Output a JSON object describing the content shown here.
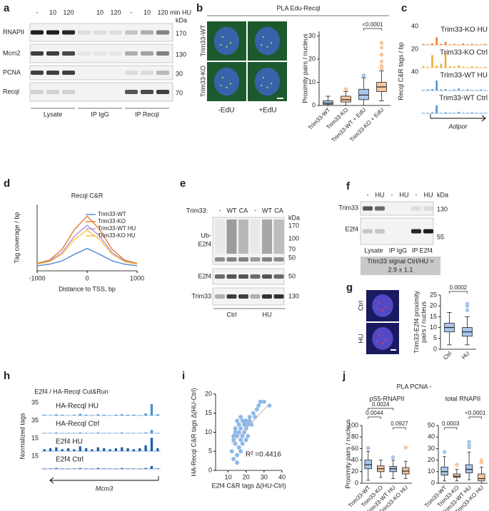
{
  "panel_labels": [
    "a",
    "b",
    "c",
    "d",
    "e",
    "f",
    "g",
    "h",
    "i",
    "j"
  ],
  "a": {
    "lanes": [
      "-",
      "10",
      "120",
      "10",
      "120",
      "-",
      "10",
      "120"
    ],
    "lane_unit": "min HU",
    "kda": "kDa",
    "rows": [
      {
        "name": "RNAPII",
        "kda": "170"
      },
      {
        "name": "Mcm2",
        "kda": "130"
      },
      {
        "name": "PCNA",
        "kda": "30"
      },
      {
        "name": "Recql",
        "kda": "70"
      }
    ],
    "groups": [
      "Lysate",
      "IP IgG",
      "IP Recql"
    ]
  },
  "b": {
    "title": "PLA Edu-Recql",
    "rows": [
      "Trim33-WT",
      "Trim33-KO"
    ],
    "columns": [
      "-EdU",
      "+EdU"
    ],
    "chart": {
      "type": "box",
      "ylabel": "Proximity pairs / nucleus",
      "categories": [
        "Trim33-WT",
        "Trim33-KO",
        "Trim33-WT + EdU",
        "Trim33-KO + EdU"
      ],
      "boxes": [
        [
          0,
          0.5,
          1,
          2,
          4
        ],
        [
          0,
          1.5,
          2.5,
          4,
          6
        ],
        [
          0,
          2.5,
          4.5,
          7,
          12
        ],
        [
          2,
          6,
          8,
          10,
          15
        ]
      ],
      "outliers": [
        [],
        [
          7
        ],
        [
          13
        ],
        [
          16,
          17,
          19,
          22,
          25,
          27
        ]
      ],
      "colors": [
        "#a9c7ec",
        "#f6c8a0",
        "#a9c7ec",
        "#f6c8a0"
      ],
      "ylim": [
        0,
        32
      ],
      "yticks": [
        0,
        10,
        20,
        30
      ],
      "pvalues": [
        "<0.0001"
      ]
    }
  },
  "c": {
    "chart": {
      "type": "tracks",
      "ylabel": "Recql C&R tags / bp",
      "ylim": [
        0,
        40
      ],
      "gene": "Adipor",
      "tracks": [
        {
          "name": "Trim33-KO HU",
          "color": "#e8752a",
          "scale": 40,
          "values": [
            2,
            1,
            3,
            15,
            2,
            6,
            1,
            2,
            1,
            3,
            1,
            2,
            1,
            1,
            2
          ]
        },
        {
          "name": "Trim33-KO Ctrl",
          "color": "#f0a830",
          "scale": 20,
          "values": [
            3,
            2,
            25,
            4,
            8,
            30,
            3,
            2,
            5,
            2,
            1,
            3,
            2,
            1,
            2
          ]
        },
        {
          "name": "Trim33-WT HU",
          "color": "#4a8fd0",
          "scale": 40,
          "values": [
            1,
            2,
            3,
            20,
            2,
            3,
            1,
            2,
            4,
            1,
            2,
            1,
            1,
            2,
            1
          ]
        },
        {
          "name": "Trim33-WT Ctrl",
          "color": "#4a8fd0",
          "values": [
            1,
            1,
            2,
            16,
            1,
            2,
            1,
            1,
            3,
            1,
            1,
            2,
            1,
            1,
            1
          ]
        }
      ]
    }
  },
  "d": {
    "chart": {
      "type": "line",
      "title": "Recql C&R",
      "xlabel": "Distance to TSS, bp",
      "ylabel": "Tag coverage / bp",
      "x": [
        -1000,
        -750,
        -500,
        -250,
        0,
        250,
        500,
        750,
        1000
      ],
      "series": [
        {
          "name": "Trim33-WT",
          "color": "#4a7fd4",
          "values": [
            0.6,
            0.8,
            1.2,
            2.0,
            2.7,
            2.0,
            1.2,
            0.8,
            0.6
          ]
        },
        {
          "name": "Trim33-KO",
          "color": "#e8752a",
          "values": [
            0.9,
            1.3,
            2.6,
            5.0,
            6.6,
            5.0,
            2.6,
            1.3,
            0.9
          ]
        },
        {
          "name": "Trim33-WT HU",
          "color": "#b08ad8",
          "values": [
            0.8,
            1.2,
            2.2,
            4.2,
            5.5,
            4.2,
            2.2,
            1.2,
            0.8
          ]
        },
        {
          "name": "Trim33-KO HU",
          "color": "#f5c12e",
          "values": [
            0.8,
            1.1,
            2.0,
            3.8,
            4.9,
            3.8,
            2.0,
            1.1,
            0.8
          ]
        }
      ],
      "xlim": [
        -1000,
        1000
      ],
      "ylim": [
        0,
        8
      ],
      "xticks": [
        -1000,
        0,
        1000
      ],
      "legend": "upper right"
    }
  },
  "e": {
    "prefix": "Trim33:",
    "lanes": [
      "-",
      "WT",
      "CA",
      "-",
      "WT",
      "CA"
    ],
    "kda": "kDa",
    "rows": [
      {
        "name": [
          "Ub-",
          "E2f4"
        ],
        "kda": [
          "170",
          "100",
          "70",
          "50"
        ]
      },
      {
        "name": [
          "E2f4"
        ],
        "kda": [
          "50"
        ]
      },
      {
        "name": [
          "Trim33"
        ],
        "kda": [
          "130"
        ]
      }
    ],
    "groups": [
      "Ctrl",
      "HU"
    ]
  },
  "f": {
    "lanes": [
      "-",
      "HU",
      "-",
      "HU",
      "-",
      "HU"
    ],
    "kda": "kDa",
    "rows": [
      {
        "name": "Trim33",
        "kda": "130"
      },
      {
        "name": "E2f4",
        "kda": "55"
      }
    ],
    "groups": [
      "Lysate",
      "IP IgG",
      "IP E2f4"
    ],
    "note": [
      "Trim33 signal Ctrl/HU =",
      "2.9 ± 1.1"
    ]
  },
  "g": {
    "rows": [
      "Ctrl",
      "HU"
    ],
    "chart": {
      "type": "box",
      "ylabel": [
        "Trim33-E2f4 proximity",
        "pairs / nucleus"
      ],
      "categories": [
        "Ctrl",
        "HU"
      ],
      "boxes": [
        [
          2,
          8,
          10,
          12,
          17
        ],
        [
          2,
          6,
          8,
          10,
          15
        ]
      ],
      "outliers": [
        [],
        [
          18,
          20,
          21
        ]
      ],
      "colors": [
        "#a9c7ec",
        "#a9c7ec"
      ],
      "ylim": [
        0,
        25
      ],
      "yticks": [
        0,
        5,
        10,
        15,
        20,
        25
      ],
      "pvalues": [
        "0.0002"
      ]
    }
  },
  "h": {
    "chart": {
      "type": "tracks",
      "title": "E2f4 / HA-Recql Cut&Run",
      "ylabel": "Normalized tags",
      "gene": "Mcm3",
      "tracks": [
        {
          "name": "HA-Recql HU",
          "color": "#4a8fd0",
          "scale": 35,
          "values": [
            2,
            1,
            3,
            2,
            1,
            2,
            4,
            2,
            1,
            3,
            2,
            1,
            2,
            3,
            2,
            2,
            1,
            5,
            28,
            3
          ]
        },
        {
          "name": "HA-Recql Ctrl",
          "color": "#4a8fd0",
          "scale": 35,
          "values": [
            1,
            1,
            2,
            1,
            1,
            1,
            2,
            1,
            1,
            2,
            1,
            1,
            1,
            2,
            1,
            1,
            1,
            2,
            8,
            1
          ]
        },
        {
          "name": "E2f4 HU",
          "color": "#1f5fa8",
          "scale": 15,
          "values": [
            2,
            3,
            4,
            2,
            3,
            2,
            5,
            3,
            2,
            4,
            3,
            2,
            3,
            4,
            3,
            2,
            3,
            6,
            14,
            3
          ]
        },
        {
          "name": "E2f4 Ctrl",
          "color": "#1f5fa8",
          "scale": 15,
          "values": [
            0.5,
            0.5,
            1,
            0.5,
            0.5,
            0.5,
            1,
            0.5,
            0.5,
            1,
            0.5,
            0.5,
            0.5,
            1,
            0.5,
            0.5,
            0.5,
            1,
            3,
            0.5
          ]
        }
      ]
    }
  },
  "i": {
    "chart": {
      "type": "scatter",
      "xlabel": "E2f4 C&R tags Δ(HU-Ctrl)",
      "ylabel": "HA-Recql C&R tags Δ(HU-Ctrl)",
      "x": [
        12,
        13,
        13,
        14,
        14,
        15,
        15,
        15,
        16,
        16,
        16,
        17,
        17,
        17,
        18,
        18,
        18,
        19,
        19,
        20,
        20,
        21,
        21,
        22,
        22,
        23,
        24,
        25,
        26,
        27,
        28,
        30,
        33,
        13,
        14,
        16,
        19,
        15,
        17,
        20
      ],
      "values": [
        5,
        8,
        3,
        11,
        7,
        13,
        9,
        4,
        12,
        6,
        10,
        14,
        8,
        11,
        9,
        13,
        7,
        12,
        10,
        11,
        13,
        12,
        9,
        13,
        14,
        12,
        15,
        14,
        16,
        17,
        18,
        18,
        17,
        9,
        10,
        12,
        13,
        2,
        5,
        8
      ],
      "color": "#8fb8e8",
      "trendline": {
        "x": [
          12,
          33
        ],
        "values": [
          7,
          17.5
        ]
      },
      "annotation": "R² =0.4416",
      "xlim": [
        3,
        40
      ],
      "ylim": [
        0,
        20
      ],
      "xticks": [
        10,
        20,
        30,
        40
      ],
      "yticks": [
        0,
        5,
        10,
        15,
        20
      ]
    }
  },
  "j": {
    "title": "PLA PCNA -",
    "ylabel": "Proximity pairs / nucleus",
    "charts": [
      {
        "type": "box",
        "title": "pS5-RNAPII",
        "categories": [
          "Trim33-WT",
          "Trim33-KO",
          "Trim33-WT HU",
          "Trim33-KO HU"
        ],
        "boxes": [
          [
            5,
            25,
            32,
            40,
            55
          ],
          [
            10,
            20,
            25,
            30,
            40
          ],
          [
            8,
            20,
            25,
            29,
            40
          ],
          [
            8,
            16,
            21,
            27,
            38
          ]
        ],
        "outliers": [
          [
            60,
            61
          ],
          [],
          [
            45
          ],
          [
            62
          ]
        ],
        "colors": [
          "#a9c7ec",
          "#f6c8a0",
          "#a9c7ec",
          "#f6c8a0"
        ],
        "ylim": [
          0,
          100
        ],
        "yticks": [
          0,
          20,
          40,
          60,
          80,
          100
        ],
        "pvalues": [
          "0.0024",
          "0.0044",
          "0.0927"
        ]
      },
      {
        "type": "box",
        "title": "total RNAPII",
        "categories": [
          "Trim33-WT",
          "Trim33-KO",
          "Trim33-WT HU",
          "Trim33-KO HU"
        ],
        "boxes": [
          [
            2,
            7,
            10,
            14,
            23
          ],
          [
            2,
            5,
            6,
            8,
            12
          ],
          [
            3,
            9,
            12,
            16,
            27
          ],
          [
            0,
            2,
            4,
            8,
            14
          ]
        ],
        "outliers": [
          [
            27
          ],
          [
            16
          ],
          [
            31,
            33,
            36
          ],
          [
            18,
            20
          ]
        ],
        "colors": [
          "#a9c7ec",
          "#f6c8a0",
          "#a9c7ec",
          "#f6c8a0"
        ],
        "ylim": [
          0,
          50
        ],
        "yticks": [
          0,
          10,
          20,
          30,
          40,
          50
        ],
        "pvalues": [
          "0.0003",
          "<0.0001"
        ]
      }
    ]
  }
}
